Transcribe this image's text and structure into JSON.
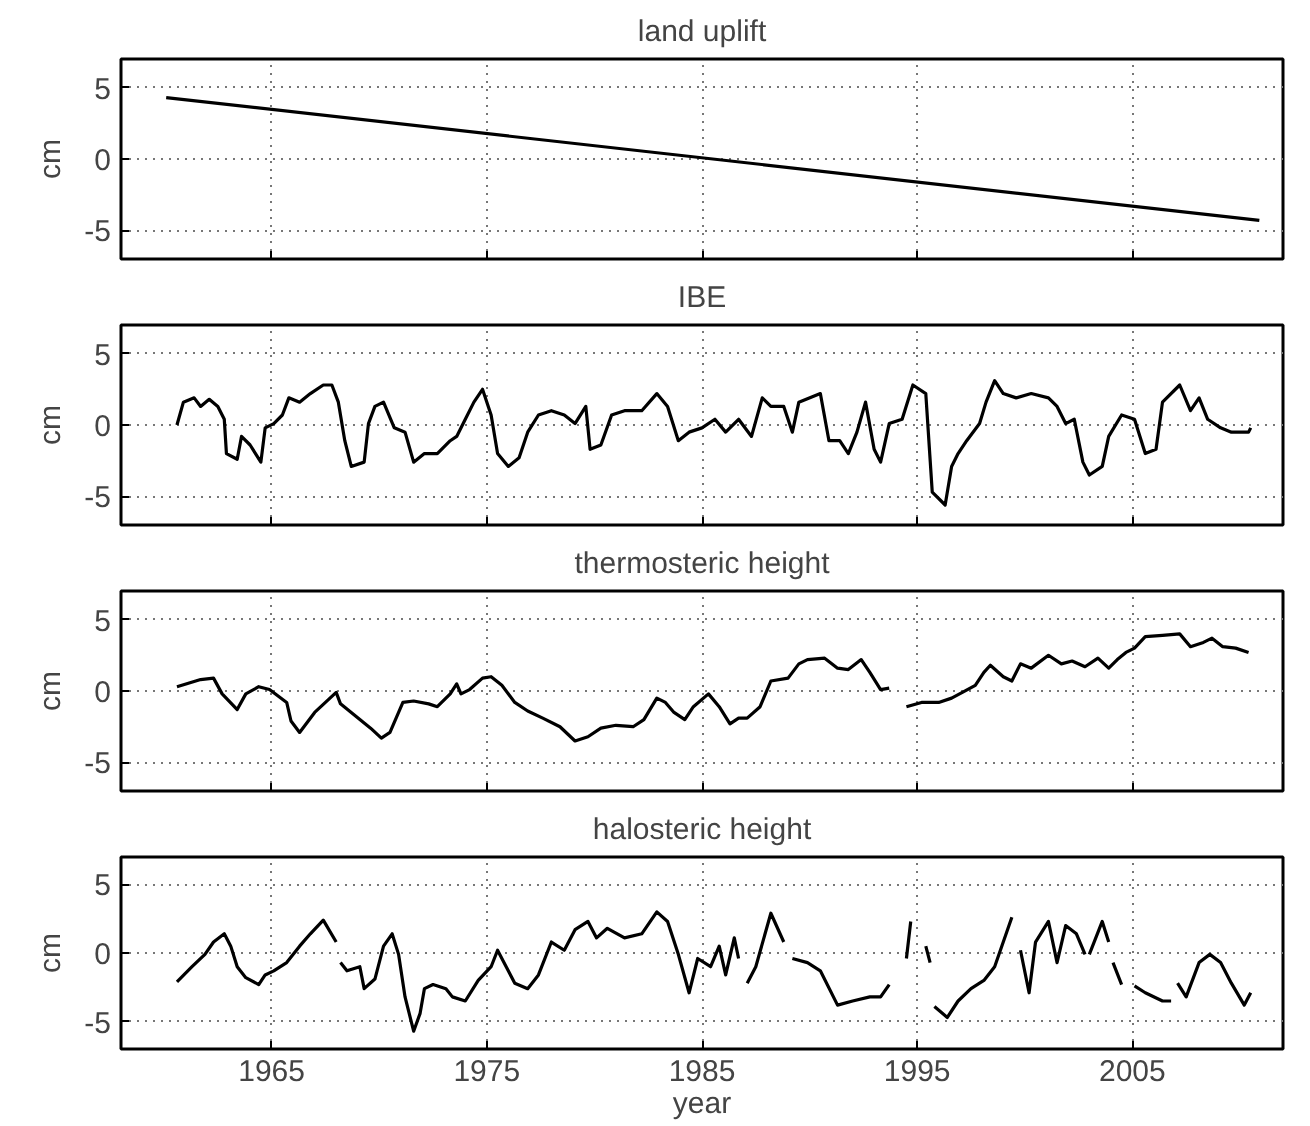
{
  "chart_data": [
    {
      "type": "line",
      "title": "land uplift",
      "ylabel": "cm",
      "xlim": [
        1958,
        2012
      ],
      "ylim": [
        -7,
        7
      ],
      "xticks": [
        {
          "value": 1965,
          "label": null
        },
        {
          "value": 1975,
          "label": null
        },
        {
          "value": 1985,
          "label": null
        },
        {
          "value": 1995,
          "label": null
        },
        {
          "value": 2005,
          "label": null
        }
      ],
      "yticks": [
        -5,
        0,
        5
      ],
      "grid": true,
      "tick_labels": "y",
      "series": [
        {
          "color": "#000000",
          "x": [
            1960.1,
            2010.9
          ],
          "values": [
            4.3,
            -4.3
          ]
        }
      ]
    },
    {
      "type": "line",
      "title": "IBE",
      "ylabel": "cm",
      "xlim": [
        1958,
        2012
      ],
      "ylim": [
        -7,
        7
      ],
      "xticks": [
        {
          "value": 1965,
          "label": null
        },
        {
          "value": 1975,
          "label": null
        },
        {
          "value": 1985,
          "label": null
        },
        {
          "value": 1995,
          "label": null
        },
        {
          "value": 2005,
          "label": null
        }
      ],
      "yticks": [
        -5,
        0,
        5
      ],
      "grid": true,
      "tick_labels": "y",
      "series": [
        {
          "color": "#000000",
          "x": [
            1960.6,
            1960.9,
            1961.4,
            1961.7,
            1962.1,
            1962.5,
            1962.8,
            1962.9,
            1963.4,
            1963.6,
            1964.0,
            1964.5,
            1964.7,
            1965.1,
            1965.5,
            1965.8,
            1966.3,
            1966.8,
            1967.4,
            1967.8,
            1968.1,
            1968.4,
            1968.7,
            1969.3,
            1969.5,
            1969.8,
            1970.2,
            1970.7,
            1971.2,
            1971.6,
            1972.1,
            1972.7,
            1973.3,
            1973.6,
            1974.0,
            1974.4,
            1974.8,
            1975.2,
            1975.5,
            1976.0,
            1976.5,
            1976.9,
            1977.4,
            1978.0,
            1978.6,
            1979.1,
            1979.6,
            1979.8,
            1980.3,
            1980.8,
            1981.4,
            1982.2,
            1982.9,
            1983.4,
            1983.9,
            1984.4,
            1985.0,
            1985.6,
            1986.1,
            1986.7,
            1987.3,
            1987.8,
            1988.2,
            1988.8,
            1989.2,
            1989.5,
            1990.5,
            1990.9,
            1991.4,
            1991.8,
            1992.2,
            1992.6,
            1993.0,
            1993.3,
            1993.7,
            1994.3,
            1994.8,
            1995.4,
            1995.7,
            1996.3,
            1996.6,
            1996.9,
            1997.3,
            1997.9,
            1998.2,
            1998.6,
            1999.0,
            1999.6,
            2000.3,
            2001.1,
            2001.5,
            2001.9,
            2002.3,
            2002.7,
            2003.0,
            2003.6,
            2003.9,
            2004.5,
            2005.1,
            2005.6,
            2006.1,
            2006.4,
            2007.2,
            2007.7,
            2008.1,
            2008.5,
            2009.1,
            2009.6,
            2010.4,
            2010.5
          ],
          "values": [
            0,
            1.6,
            1.9,
            1.3,
            1.8,
            1.3,
            0.4,
            -2.0,
            -2.4,
            -0.8,
            -1.4,
            -2.6,
            -0.2,
            0.1,
            0.7,
            1.9,
            1.6,
            2.2,
            2.8,
            2.8,
            1.6,
            -1.1,
            -2.9,
            -2.6,
            0.1,
            1.3,
            1.6,
            -0.2,
            -0.5,
            -2.6,
            -2.0,
            -2.0,
            -1.1,
            -0.8,
            0.4,
            1.6,
            2.5,
            0.7,
            -2.0,
            -2.9,
            -2.3,
            -0.5,
            0.7,
            1.0,
            0.7,
            0.1,
            1.3,
            -1.7,
            -1.4,
            0.7,
            1.0,
            1.0,
            2.2,
            1.3,
            -1.1,
            -0.5,
            -0.2,
            0.4,
            -0.5,
            0.4,
            -0.8,
            1.9,
            1.3,
            1.3,
            -0.5,
            1.6,
            2.2,
            -1.1,
            -1.1,
            -2.0,
            -0.5,
            1.6,
            -1.7,
            -2.6,
            0.1,
            0.4,
            2.8,
            2.2,
            -4.7,
            -5.6,
            -2.9,
            -2.0,
            -1.1,
            0.1,
            1.6,
            3.1,
            2.2,
            1.9,
            2.2,
            1.9,
            1.3,
            0.1,
            0.4,
            -2.6,
            -3.5,
            -2.9,
            -0.8,
            0.7,
            0.4,
            -2.0,
            -1.7,
            1.6,
            2.8,
            1.0,
            1.9,
            0.4,
            -0.2,
            -0.5,
            -0.5,
            -0.2
          ]
        }
      ]
    },
    {
      "type": "line",
      "title": "thermosteric height",
      "ylabel": "cm",
      "xlim": [
        1958,
        2012
      ],
      "ylim": [
        -7,
        7
      ],
      "xticks": [
        {
          "value": 1965,
          "label": null
        },
        {
          "value": 1975,
          "label": null
        },
        {
          "value": 1985,
          "label": null
        },
        {
          "value": 1995,
          "label": null
        },
        {
          "value": 2005,
          "label": null
        }
      ],
      "yticks": [
        -5,
        0,
        5
      ],
      "grid": true,
      "tick_labels": "y",
      "series": [
        {
          "color": "#000000",
          "x": [
            1960.6,
            1961.7,
            1962.3,
            1962.7,
            1963.4,
            1963.8,
            1964.4,
            1964.9,
            1965.7,
            1965.9,
            1966.3,
            1967.0,
            1968.0,
            1968.2,
            1969.1,
            1969.6,
            1970.1,
            1970.5,
            1971.1,
            1971.6,
            1972.3,
            1972.7,
            1973.3,
            1973.6,
            1973.8,
            1974.2,
            1974.8,
            1975.2,
            1975.7,
            1976.3,
            1976.9,
            1977.6,
            1978.4,
            1979.1,
            1979.7,
            1980.3,
            1981.0,
            1981.8,
            1982.3,
            1982.9,
            1983.3,
            1983.7,
            1984.2,
            1984.6,
            1985.3,
            1985.8,
            1986.3,
            1986.7,
            1987.1,
            1987.7,
            1988.2,
            1989.0,
            1989.5,
            1989.9,
            1990.7,
            1991.3,
            1991.8,
            1992.4,
            1992.8,
            1993.3,
            1993.7,
            1994.0,
            1994.5,
            1995.2,
            1996.0,
            1996.6,
            1997.1,
            1997.7,
            1998.1,
            1998.4,
            1999.0,
            1999.4,
            1999.8,
            2000.3,
            2001.1,
            2001.7,
            2002.2,
            2002.8,
            2003.4,
            2003.9,
            2004.3,
            2004.7,
            2005.1,
            2005.6,
            2006.4,
            2007.2,
            2007.7,
            2008.3,
            2008.7,
            2009.2,
            2009.8,
            2010.4
          ],
          "values": [
            0.3,
            0.8,
            0.9,
            -0.2,
            -1.3,
            -0.2,
            0.3,
            0.1,
            -0.8,
            -2.1,
            -2.9,
            -1.5,
            -0.1,
            -0.9,
            -2.0,
            -2.6,
            -3.3,
            -2.9,
            -0.8,
            -0.7,
            -0.9,
            -1.1,
            -0.2,
            0.5,
            -0.2,
            0.1,
            0.9,
            1.0,
            0.4,
            -0.8,
            -1.4,
            -1.9,
            -2.5,
            -3.5,
            -3.2,
            -2.6,
            -2.4,
            -2.5,
            -2.0,
            -0.5,
            -0.8,
            -1.5,
            -2.0,
            -1.1,
            -0.2,
            -1.1,
            -2.3,
            -1.9,
            -1.9,
            -1.1,
            0.7,
            0.9,
            1.9,
            2.2,
            2.3,
            1.6,
            1.5,
            2.2,
            1.3,
            0.1,
            0.2,
            null,
            -1.1,
            -0.8,
            -0.8,
            -0.5,
            -0.1,
            0.4,
            1.3,
            1.8,
            1.0,
            0.7,
            1.9,
            1.6,
            2.5,
            1.9,
            2.1,
            1.7,
            2.3,
            1.6,
            2.2,
            2.7,
            3.0,
            3.8,
            3.9,
            4.0,
            3.1,
            3.4,
            3.7,
            3.1,
            3.0,
            2.7
          ]
        }
      ]
    },
    {
      "type": "line",
      "title": "halosteric height",
      "ylabel": "cm",
      "xlabel": "year",
      "xlim": [
        1958,
        2012
      ],
      "ylim": [
        -7,
        7
      ],
      "xticks": [
        1965,
        1975,
        1985,
        1995,
        2005
      ],
      "yticks": [
        -5,
        0,
        5
      ],
      "grid": true,
      "series": [
        {
          "color": "#000000",
          "x": [
            1960.6,
            1961.3,
            1961.9,
            1962.3,
            1962.8,
            1963.1,
            1963.4,
            1963.8,
            1964.4,
            1964.7,
            1965.1,
            1965.7,
            1966.3,
            1966.8,
            1967.4,
            1968.0,
            1968.1,
            1968.2,
            1968.5,
            1969.1,
            1969.3,
            1969.8,
            1970.2,
            1970.6,
            1970.9,
            1971.2,
            1971.6,
            1971.9,
            1972.1,
            1972.5,
            1973.1,
            1973.4,
            1974.0,
            1974.6,
            1975.2,
            1975.5,
            1975.9,
            1976.3,
            1976.9,
            1977.4,
            1978.0,
            1978.6,
            1979.1,
            1979.7,
            1980.1,
            1980.6,
            1981.4,
            1982.2,
            1982.9,
            1983.4,
            1983.9,
            1984.4,
            1984.8,
            1985.4,
            1985.8,
            1986.1,
            1986.5,
            1986.7,
            1986.9,
            1987.1,
            1987.5,
            1988.2,
            1988.8,
            1989.0,
            1989.2,
            1989.9,
            1990.5,
            1991.3,
            1992.0,
            1992.8,
            1993.3,
            1993.7,
            1994.0,
            1994.5,
            1994.7,
            1995.0,
            1995.4,
            1995.6,
            1995.7,
            1995.8,
            1996.4,
            1996.9,
            1997.5,
            1998.1,
            1998.6,
            1999.0,
            1999.4,
            1999.6,
            1999.8,
            2000.2,
            2000.5,
            2001.1,
            2001.5,
            2001.9,
            2002.4,
            2002.8,
            2002.9,
            2003.0,
            2003.6,
            2003.9,
            2004.0,
            2004.1,
            2004.5,
            2004.8,
            2005.1,
            2005.6,
            2006.4,
            2006.8,
            2007.0,
            2007.1,
            2007.5,
            2008.1,
            2008.6,
            2009.1,
            2009.6,
            2010.2,
            2010.5
          ],
          "values": [
            -2.1,
            -1.0,
            -0.1,
            0.8,
            1.4,
            0.5,
            -1.0,
            -1.8,
            -2.3,
            -1.6,
            -1.3,
            -0.7,
            0.5,
            1.4,
            2.4,
            0.8,
            null,
            -0.7,
            -1.3,
            -1.0,
            -2.6,
            -1.9,
            0.5,
            1.4,
            -0.1,
            -3.2,
            -5.7,
            -4.4,
            -2.6,
            -2.3,
            -2.6,
            -3.2,
            -3.5,
            -2.0,
            -1.0,
            0.2,
            -1.0,
            -2.2,
            -2.6,
            -1.6,
            0.8,
            0.2,
            1.7,
            2.3,
            1.1,
            1.8,
            1.1,
            1.4,
            3.0,
            2.3,
            -0.1,
            -2.9,
            -0.4,
            -1.0,
            0.5,
            -1.6,
            1.1,
            -0.4,
            null,
            -2.2,
            -1.0,
            2.9,
            0.8,
            null,
            -0.4,
            -0.7,
            -1.3,
            -3.8,
            -3.5,
            -3.2,
            -3.2,
            -2.3,
            null,
            -0.4,
            2.3,
            null,
            0.5,
            -0.7,
            null,
            -3.9,
            -4.7,
            -3.5,
            -2.6,
            -2.0,
            -1.0,
            0.8,
            2.6,
            null,
            0.2,
            -2.9,
            0.8,
            2.3,
            -0.7,
            2.0,
            1.4,
            -0.1,
            null,
            -0.1,
            2.3,
            0.8,
            null,
            -0.7,
            -2.3,
            null,
            -2.4,
            -2.9,
            -3.5,
            -3.5,
            null,
            -2.2,
            -3.2,
            -0.7,
            -0.1,
            -0.7,
            -2.2,
            -3.8,
            -2.9
          ]
        }
      ]
    }
  ]
}
